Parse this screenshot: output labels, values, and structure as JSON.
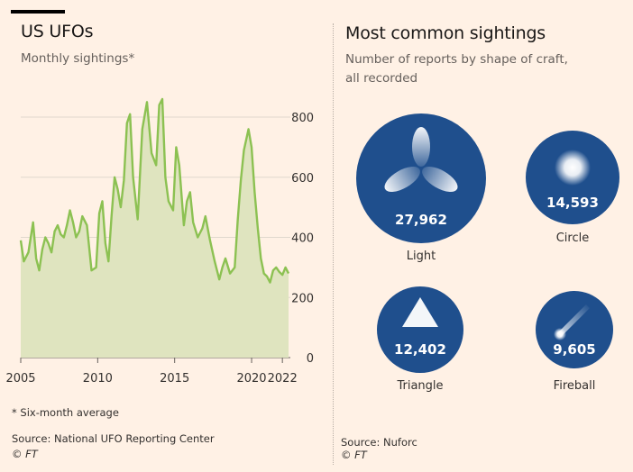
{
  "left": {
    "title": "US UFOs",
    "subtitle": "Monthly sightings*",
    "footnote": "* Six-month average",
    "source": "Source: National UFO Reporting Center",
    "copyright": "© FT"
  },
  "right": {
    "title": "Most common sightings",
    "subtitle_line1": "Number of reports by shape of craft,",
    "subtitle_line2": "all recorded",
    "source": "Source: Nuforc",
    "copyright": "© FT"
  },
  "colors": {
    "background": "#fff1e5",
    "line": "#8cc152",
    "area": "#dfe4bf",
    "bubble": "#1f4f8d",
    "grid": "#e0d8cd"
  },
  "chart_data": [
    {
      "type": "area",
      "title": "US UFOs",
      "subtitle": "Monthly sightings*",
      "ylim": [
        0,
        900
      ],
      "yticks": [
        0,
        200,
        400,
        600,
        800
      ],
      "xlim": [
        2005,
        2022.7
      ],
      "xticks": [
        2005,
        2010,
        2015,
        2020,
        2022
      ],
      "grid": true,
      "series": [
        {
          "x": [
            2005.0,
            2005.2,
            2005.5,
            2005.8,
            2006.0,
            2006.2,
            2006.4,
            2006.6,
            2006.8,
            2007.0,
            2007.2,
            2007.4,
            2007.6,
            2007.8,
            2008.0,
            2008.2,
            2008.4,
            2008.6,
            2008.8,
            2009.0,
            2009.3,
            2009.6,
            2009.9,
            2010.1,
            2010.3,
            2010.5,
            2010.7,
            2010.9,
            2011.1,
            2011.3,
            2011.5,
            2011.7,
            2011.9,
            2012.1,
            2012.3,
            2012.6,
            2012.9,
            2013.2,
            2013.5,
            2013.8,
            2014.0,
            2014.2,
            2014.4,
            2014.6,
            2014.9,
            2015.1,
            2015.3,
            2015.6,
            2015.8,
            2016.0,
            2016.2,
            2016.5,
            2016.8,
            2017.0,
            2017.3,
            2017.6,
            2017.9,
            2018.1,
            2018.3,
            2018.6,
            2018.9,
            2019.1,
            2019.3,
            2019.5,
            2019.8,
            2020.0,
            2020.2,
            2020.4,
            2020.6,
            2020.8,
            2021.0,
            2021.2,
            2021.4,
            2021.6,
            2021.8,
            2022.0,
            2022.2,
            2022.4
          ],
          "y": [
            390,
            320,
            350,
            450,
            330,
            290,
            360,
            400,
            380,
            350,
            420,
            440,
            410,
            400,
            440,
            490,
            450,
            400,
            420,
            470,
            440,
            290,
            300,
            480,
            520,
            380,
            320,
            470,
            600,
            560,
            500,
            590,
            780,
            810,
            600,
            460,
            760,
            850,
            680,
            640,
            840,
            860,
            600,
            520,
            490,
            700,
            640,
            440,
            520,
            550,
            450,
            400,
            430,
            470,
            390,
            320,
            260,
            300,
            330,
            280,
            300,
            460,
            590,
            690,
            760,
            700,
            550,
            430,
            330,
            280,
            270,
            250,
            290,
            300,
            285,
            275,
            300,
            280
          ]
        }
      ]
    },
    {
      "type": "bubble",
      "title": "Most common sightings",
      "subtitle": "Number of reports by shape of craft, all recorded",
      "categories": [
        "Light",
        "Circle",
        "Triangle",
        "Fireball"
      ],
      "values": [
        27962,
        14593,
        12402,
        9605
      ],
      "value_labels": [
        "27,962",
        "14,593",
        "12,402",
        "9,605"
      ]
    }
  ]
}
